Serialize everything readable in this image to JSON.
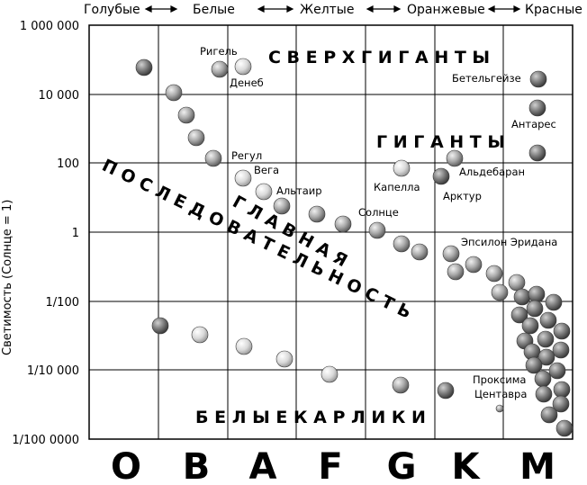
{
  "top_labels": [
    "Голубые",
    "Белые",
    "Желтые",
    "Оранжевые",
    "Красные"
  ],
  "y_axis_title": "Светимость (Солнце = 1)",
  "y_ticks": [
    "1 000 000",
    "10 000",
    "100",
    "1",
    "1/100",
    "1/10 000",
    "1/100 0000"
  ],
  "spectral_classes": [
    "O",
    "B",
    "A",
    "F",
    "G",
    "K",
    "M"
  ],
  "regions": {
    "supergiants": "С В Е Р Х Г И Г А Н Т Ы",
    "giants": "Г И Г А Н Т Ы",
    "main_sequence_1": "П О С Л Е Д О В А Т Е Л Ь Н О С Т Ь",
    "main_sequence_2": "Г Л А В Н А Я",
    "white_dwarfs": "Б Е Л Ы Е   К А Р Л И К И"
  },
  "star_labels": {
    "rigel": "Ригель",
    "deneb": "Денеб",
    "betelgeuse": "Бетельгейзе",
    "antares": "Антарес",
    "regulus": "Регул",
    "vega": "Вега",
    "altair": "Альтаир",
    "capella": "Капелла",
    "aldebaran": "Альдебаран",
    "arcturus": "Арктур",
    "sun": "Солнце",
    "epsilon_eridani": "Эпсилон Эридана",
    "proxima_1": "Проксима",
    "proxima_2": "Центавра"
  },
  "colors": {
    "grid": "#000000",
    "star_light": "#f2f2f2",
    "star_mid": "#b5b5b5",
    "star_dark": "#5a5a5a"
  }
}
